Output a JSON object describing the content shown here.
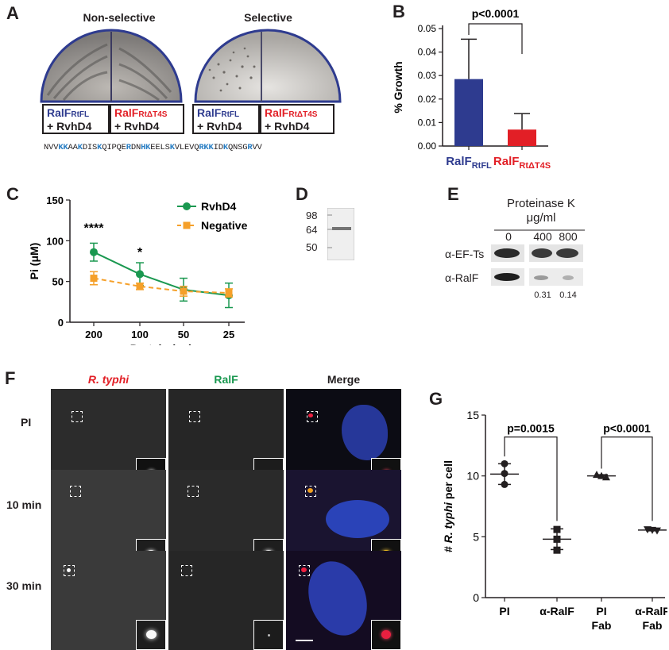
{
  "panels": {
    "A": {
      "label": "A",
      "headers": [
        "Non-selective",
        "Selective"
      ],
      "boxes": [
        {
          "name": "RalF",
          "sub": "RtFL",
          "line2": "+ RvhD4",
          "color": "blue"
        },
        {
          "name": "RalF",
          "sub": "RtΔT4S",
          "line2": "+ RvhD4",
          "color": "red"
        },
        {
          "name": "RalF",
          "sub": "RtFL",
          "line2": "+ RvhD4",
          "color": "blue"
        },
        {
          "name": "RalF",
          "sub": "RtΔT4S",
          "line2": "+ RvhD4",
          "color": "red"
        }
      ],
      "sequence": [
        {
          "t": "NVV",
          "h": false
        },
        {
          "t": "KK",
          "h": true
        },
        {
          "t": "AA",
          "h": false
        },
        {
          "t": "K",
          "h": true
        },
        {
          "t": "DIS",
          "h": false
        },
        {
          "t": "K",
          "h": true
        },
        {
          "t": "QIPQE",
          "h": false
        },
        {
          "t": "R",
          "h": true
        },
        {
          "t": "DN",
          "h": false
        },
        {
          "t": "HK",
          "h": true
        },
        {
          "t": "EELS",
          "h": false
        },
        {
          "t": "K",
          "h": true
        },
        {
          "t": "VLEVQ",
          "h": false
        },
        {
          "t": "RKK",
          "h": true
        },
        {
          "t": "ID",
          "h": false
        },
        {
          "t": "K",
          "h": true
        },
        {
          "t": "QNSG",
          "h": false
        },
        {
          "t": "R",
          "h": true
        },
        {
          "t": "VV",
          "h": false
        }
      ]
    },
    "B": {
      "label": "B",
      "pvalue": "p<0.0001"
    },
    "C": {
      "label": "C",
      "stars": [
        "****",
        "*"
      ]
    },
    "D": {
      "label": "D",
      "markers": [
        "98",
        "64",
        "50"
      ]
    },
    "E": {
      "label": "E",
      "title1": "Proteinase K",
      "title2": "μg/ml",
      "concs": [
        "0",
        "400",
        "800"
      ],
      "rows": [
        "α-EF-Ts",
        "α-RalF"
      ],
      "ratios": [
        "0.31",
        "0.14"
      ]
    },
    "F": {
      "label": "F",
      "columns": [
        "R. typhi",
        "RalF",
        "Merge"
      ],
      "rows": [
        "PI",
        "10 min",
        "30 min"
      ]
    },
    "G": {
      "label": "G",
      "pvalues": [
        "p=0.0015",
        "p<0.0001"
      ]
    }
  },
  "chart_data": [
    {
      "type": "bar",
      "panel": "B",
      "categories": [
        "RalF RtFL",
        "RalF RtΔT4S"
      ],
      "category_colors": [
        "#2e3b8f",
        "#e21f26"
      ],
      "values": [
        0.0285,
        0.007
      ],
      "errors": [
        0.017,
        0.0068
      ],
      "ylabel": "% Growth",
      "ylim": [
        0,
        0.05
      ],
      "yticks": [
        0.0,
        0.01,
        0.02,
        0.03,
        0.04,
        0.05
      ],
      "ytick_labels": [
        "0.00",
        "0.01",
        "0.02",
        "0.03",
        "0.04",
        "0.05"
      ],
      "annotation": "p<0.0001"
    },
    {
      "type": "line",
      "panel": "C",
      "categories": [
        "200",
        "100",
        "50",
        "25"
      ],
      "series": [
        {
          "name": "RvhD4",
          "color": "#1a9850",
          "values": [
            86,
            59,
            40,
            33
          ],
          "errors": [
            11,
            14,
            14,
            15
          ]
        },
        {
          "name": "Negative",
          "color": "#f5a02a",
          "values": [
            54,
            44,
            38,
            36
          ],
          "errors": [
            8,
            4,
            6,
            5
          ]
        }
      ],
      "xlabel": "Protein (ng)",
      "ylabel": "Pi (μM)",
      "ylim": [
        0,
        150
      ],
      "yticks": [
        0,
        50,
        100,
        150
      ],
      "legend": "top-right",
      "annotations": [
        "****",
        "*"
      ]
    },
    {
      "type": "scatter",
      "panel": "G",
      "categories": [
        "PI",
        "α-RalF",
        "PI\nFab",
        "α-RalF\nFab"
      ],
      "category_lines": [
        [
          "PI"
        ],
        [
          "α-RalF"
        ],
        [
          "PI",
          "Fab"
        ],
        [
          "α-RalF",
          "Fab"
        ]
      ],
      "markers": [
        "circle",
        "square",
        "triangle-up",
        "triangle-down"
      ],
      "points": [
        [
          11.0,
          10.2,
          9.3
        ],
        [
          5.6,
          4.8,
          3.9
        ],
        [
          10.1,
          10.0,
          9.9
        ],
        [
          5.6,
          5.55,
          5.5
        ]
      ],
      "means": [
        10.15,
        4.8,
        10.0,
        5.55
      ],
      "sd": [
        0.85,
        0.85,
        0.1,
        0.06
      ],
      "ylabel": "# R. typhi per cell",
      "ylim": [
        0,
        15
      ],
      "yticks": [
        0,
        5,
        10,
        15
      ],
      "annotations": [
        "p=0.0015",
        "p<0.0001"
      ]
    }
  ]
}
